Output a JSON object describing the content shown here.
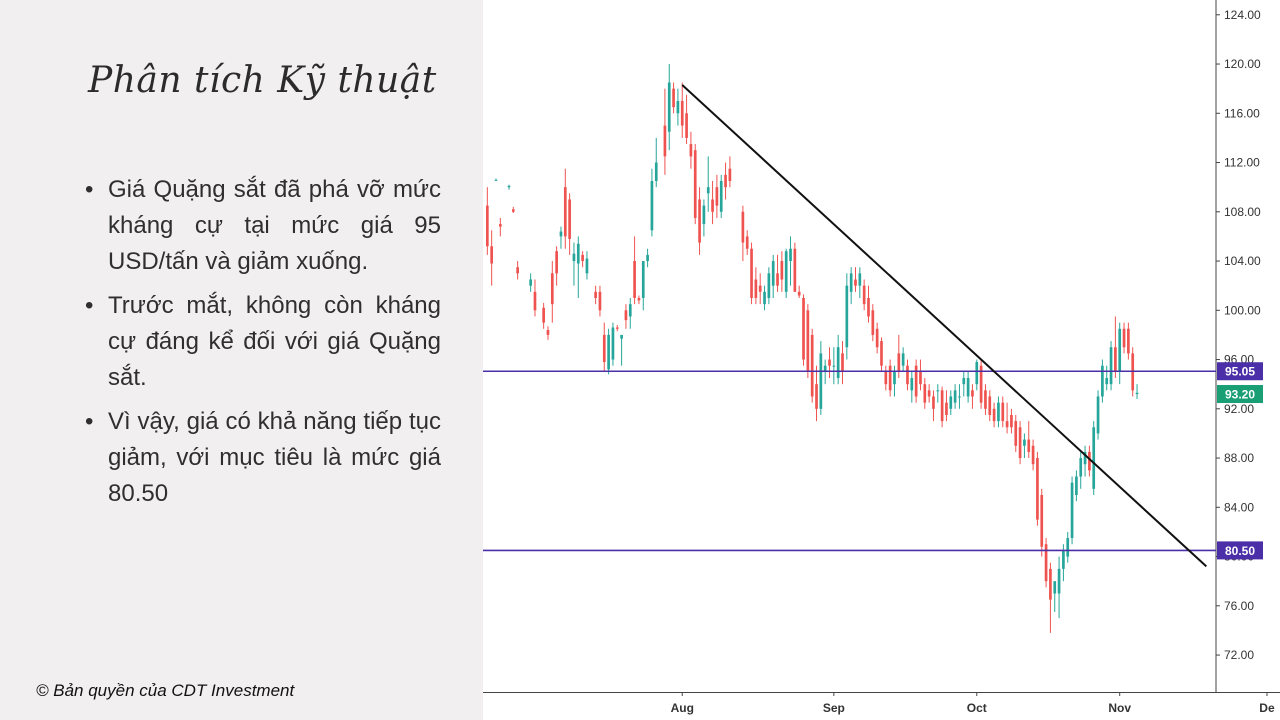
{
  "slide": {
    "title": "Phân tích Kỹ thuật",
    "bullet_symbol": "•",
    "bullets": [
      "Giá Quặng sắt đã phá vỡ mức kháng cự tại mức giá 95 USD/tấn và giảm xuống.",
      "Trước mắt, không còn kháng cự đáng kể đối với giá Quặng sắt.",
      "Vì vậy, giá có khả năng tiếp tục giảm, với mục tiêu là mức giá 80.50"
    ],
    "copyright": "© Bản quyền của CDT Investment"
  },
  "chart_data": {
    "type": "candlestick",
    "title": "",
    "xlabel": "",
    "ylabel": "",
    "x_range": [
      -16,
      153
    ],
    "ylim": [
      69.0,
      125.2
    ],
    "y_ticks": [
      "72.00",
      "76.00",
      "80.00",
      "84.00",
      "88.00",
      "92.00",
      "96.00",
      "100.00",
      "104.00",
      "108.00",
      "112.00",
      "116.00",
      "120.00",
      "124.00"
    ],
    "month_labels": [
      {
        "label": "Aug",
        "x": 30
      },
      {
        "label": "Sep",
        "x": 65
      },
      {
        "label": "Oct",
        "x": 98
      },
      {
        "label": "Nov",
        "x": 131
      },
      {
        "label": "De",
        "x": 165
      }
    ],
    "up_color": "#26a69a",
    "down_color": "#ef5350",
    "horizontal_levels": [
      {
        "value": 95.05,
        "label": "95.05",
        "color": "#4b2fa8"
      },
      {
        "value": 80.5,
        "label": "80.50",
        "color": "#4b2fa8"
      }
    ],
    "last_price": {
      "value": 93.2,
      "label": "93.20",
      "color": "#1a9e74"
    },
    "trendline": {
      "start": {
        "x": 30,
        "y": 118.3
      },
      "end": {
        "x": 151,
        "y": 79.2
      },
      "color": "#111111"
    },
    "candles": [
      {
        "x": -15,
        "o": 108.5,
        "h": 110.0,
        "l": 104.5,
        "c": 105.2
      },
      {
        "x": -14,
        "o": 105.2,
        "h": 106.5,
        "l": 102.0,
        "c": 103.8
      },
      {
        "x": -13,
        "o": 110.6,
        "h": 110.7,
        "l": 110.5,
        "c": 110.6
      },
      {
        "x": -12,
        "o": 107.0,
        "h": 107.5,
        "l": 106.0,
        "c": 106.8
      },
      {
        "x": -10,
        "o": 110.0,
        "h": 110.2,
        "l": 109.8,
        "c": 110.1
      },
      {
        "x": -9,
        "o": 108.2,
        "h": 108.4,
        "l": 107.9,
        "c": 108.0
      },
      {
        "x": -8,
        "o": 103.5,
        "h": 104.0,
        "l": 102.5,
        "c": 103.0
      },
      {
        "x": -5,
        "o": 102.0,
        "h": 103.0,
        "l": 101.5,
        "c": 102.5
      },
      {
        "x": -4,
        "o": 101.5,
        "h": 102.5,
        "l": 99.5,
        "c": 100.0
      },
      {
        "x": -2,
        "o": 100.2,
        "h": 100.6,
        "l": 98.5,
        "c": 99.0
      },
      {
        "x": -1,
        "o": 98.4,
        "h": 98.7,
        "l": 97.6,
        "c": 98.0
      },
      {
        "x": 0,
        "o": 103.0,
        "h": 104.0,
        "l": 99.0,
        "c": 100.5
      },
      {
        "x": 1,
        "o": 104.8,
        "h": 105.2,
        "l": 102.0,
        "c": 103.0
      },
      {
        "x": 2,
        "o": 106.0,
        "h": 106.8,
        "l": 105.0,
        "c": 106.4
      },
      {
        "x": 3,
        "o": 110.0,
        "h": 111.5,
        "l": 105.0,
        "c": 106.0
      },
      {
        "x": 4,
        "o": 109.0,
        "h": 109.5,
        "l": 104.5,
        "c": 105.8
      },
      {
        "x": 5,
        "o": 104.0,
        "h": 105.5,
        "l": 102.0,
        "c": 104.6
      },
      {
        "x": 6,
        "o": 103.8,
        "h": 106.0,
        "l": 101.0,
        "c": 105.4
      },
      {
        "x": 7,
        "o": 104.5,
        "h": 104.8,
        "l": 103.5,
        "c": 104.0
      },
      {
        "x": 8,
        "o": 103.0,
        "h": 104.8,
        "l": 102.5,
        "c": 104.2
      },
      {
        "x": 10,
        "o": 101.5,
        "h": 102.0,
        "l": 100.5,
        "c": 101.0
      },
      {
        "x": 11,
        "o": 101.5,
        "h": 102.0,
        "l": 99.5,
        "c": 100.0
      },
      {
        "x": 12,
        "o": 98.0,
        "h": 99.0,
        "l": 95.0,
        "c": 95.8
      },
      {
        "x": 13,
        "o": 95.2,
        "h": 98.5,
        "l": 94.8,
        "c": 98.0
      },
      {
        "x": 14,
        "o": 96.0,
        "h": 99.0,
        "l": 95.5,
        "c": 98.6
      },
      {
        "x": 15,
        "o": 98.6,
        "h": 98.8,
        "l": 98.3,
        "c": 98.5
      },
      {
        "x": 16,
        "o": 97.7,
        "h": 98.0,
        "l": 95.5,
        "c": 98.0
      },
      {
        "x": 17,
        "o": 100.0,
        "h": 100.5,
        "l": 98.5,
        "c": 99.2
      },
      {
        "x": 18,
        "o": 99.5,
        "h": 101.0,
        "l": 98.5,
        "c": 100.5
      },
      {
        "x": 19,
        "o": 104.0,
        "h": 106.0,
        "l": 100.5,
        "c": 101.0
      },
      {
        "x": 20,
        "o": 101.0,
        "h": 101.2,
        "l": 100.5,
        "c": 100.8
      },
      {
        "x": 21,
        "o": 101.0,
        "h": 104.0,
        "l": 100.0,
        "c": 104.0
      },
      {
        "x": 22,
        "o": 104.0,
        "h": 105.0,
        "l": 103.5,
        "c": 104.5
      },
      {
        "x": 23,
        "o": 106.5,
        "h": 111.5,
        "l": 106.0,
        "c": 110.5
      },
      {
        "x": 24,
        "o": 110.5,
        "h": 114.0,
        "l": 110.0,
        "c": 112.0
      },
      {
        "x": 26,
        "o": 115.0,
        "h": 118.0,
        "l": 111.0,
        "c": 112.5
      },
      {
        "x": 27,
        "o": 114.5,
        "h": 120.0,
        "l": 113.0,
        "c": 118.5
      },
      {
        "x": 28,
        "o": 118.0,
        "h": 118.5,
        "l": 116.0,
        "c": 116.5
      },
      {
        "x": 29,
        "o": 116.0,
        "h": 118.0,
        "l": 115.0,
        "c": 117.0
      },
      {
        "x": 30,
        "o": 117.0,
        "h": 118.5,
        "l": 114.0,
        "c": 115.0
      },
      {
        "x": 31,
        "o": 116.0,
        "h": 117.5,
        "l": 113.5,
        "c": 114.0
      },
      {
        "x": 32,
        "o": 113.5,
        "h": 114.5,
        "l": 111.5,
        "c": 112.5
      },
      {
        "x": 33,
        "o": 113.0,
        "h": 113.5,
        "l": 107.0,
        "c": 107.5
      },
      {
        "x": 34,
        "o": 109.0,
        "h": 110.0,
        "l": 104.5,
        "c": 105.5
      },
      {
        "x": 35,
        "o": 107.0,
        "h": 109.0,
        "l": 106.0,
        "c": 108.5
      },
      {
        "x": 36,
        "o": 109.5,
        "h": 112.5,
        "l": 108.0,
        "c": 110.0
      },
      {
        "x": 37,
        "o": 109.0,
        "h": 110.5,
        "l": 107.0,
        "c": 108.0
      },
      {
        "x": 38,
        "o": 110.0,
        "h": 111.0,
        "l": 107.5,
        "c": 108.5
      },
      {
        "x": 39,
        "o": 108.0,
        "h": 111.0,
        "l": 107.5,
        "c": 110.5
      },
      {
        "x": 40,
        "o": 111.0,
        "h": 112.0,
        "l": 109.0,
        "c": 110.0
      },
      {
        "x": 41,
        "o": 111.5,
        "h": 112.5,
        "l": 110.0,
        "c": 110.5
      },
      {
        "x": 44,
        "o": 108.0,
        "h": 108.5,
        "l": 104.0,
        "c": 105.5
      },
      {
        "x": 45,
        "o": 106.0,
        "h": 106.5,
        "l": 104.5,
        "c": 105.0
      },
      {
        "x": 46,
        "o": 105.0,
        "h": 105.5,
        "l": 100.5,
        "c": 101.0
      },
      {
        "x": 47,
        "o": 102.5,
        "h": 103.5,
        "l": 100.5,
        "c": 101.0
      },
      {
        "x": 48,
        "o": 102.0,
        "h": 103.0,
        "l": 100.5,
        "c": 101.5
      },
      {
        "x": 49,
        "o": 100.5,
        "h": 102.0,
        "l": 100.0,
        "c": 101.5
      },
      {
        "x": 50,
        "o": 101.0,
        "h": 103.5,
        "l": 100.5,
        "c": 103.0
      },
      {
        "x": 51,
        "o": 102.0,
        "h": 104.5,
        "l": 101.0,
        "c": 104.0
      },
      {
        "x": 52,
        "o": 103.0,
        "h": 104.5,
        "l": 101.5,
        "c": 102.0
      },
      {
        "x": 53,
        "o": 104.0,
        "h": 104.8,
        "l": 101.5,
        "c": 102.5
      },
      {
        "x": 54,
        "o": 101.5,
        "h": 105.0,
        "l": 101.0,
        "c": 104.8
      },
      {
        "x": 55,
        "o": 104.0,
        "h": 106.0,
        "l": 102.0,
        "c": 105.0
      },
      {
        "x": 56,
        "o": 105.0,
        "h": 105.5,
        "l": 101.5,
        "c": 101.5
      },
      {
        "x": 57,
        "o": 101.5,
        "h": 102.0,
        "l": 101.0,
        "c": 101.2
      },
      {
        "x": 58,
        "o": 101.0,
        "h": 101.3,
        "l": 95.5,
        "c": 96.0
      },
      {
        "x": 59,
        "o": 100.0,
        "h": 100.5,
        "l": 94.5,
        "c": 95.0
      },
      {
        "x": 60,
        "o": 98.0,
        "h": 98.5,
        "l": 92.5,
        "c": 93.0
      },
      {
        "x": 61,
        "o": 94.0,
        "h": 95.5,
        "l": 91.0,
        "c": 92.0
      },
      {
        "x": 62,
        "o": 92.0,
        "h": 97.5,
        "l": 91.5,
        "c": 96.5
      },
      {
        "x": 63,
        "o": 95.0,
        "h": 96.0,
        "l": 94.0,
        "c": 95.5
      },
      {
        "x": 64,
        "o": 96.0,
        "h": 97.0,
        "l": 94.5,
        "c": 95.5
      },
      {
        "x": 65,
        "o": 95.5,
        "h": 97.0,
        "l": 94.0,
        "c": 95.5
      },
      {
        "x": 66,
        "o": 94.5,
        "h": 98.0,
        "l": 94.0,
        "c": 97.0
      },
      {
        "x": 67,
        "o": 96.5,
        "h": 97.5,
        "l": 94.0,
        "c": 95.0
      },
      {
        "x": 68,
        "o": 97.0,
        "h": 103.0,
        "l": 96.0,
        "c": 102.0
      },
      {
        "x": 69,
        "o": 101.5,
        "h": 103.5,
        "l": 100.5,
        "c": 103.0
      },
      {
        "x": 70,
        "o": 102.5,
        "h": 103.5,
        "l": 101.5,
        "c": 102.0
      },
      {
        "x": 71,
        "o": 102.0,
        "h": 103.5,
        "l": 101.0,
        "c": 103.0
      },
      {
        "x": 72,
        "o": 102.0,
        "h": 102.5,
        "l": 100.0,
        "c": 100.5
      },
      {
        "x": 73,
        "o": 101.0,
        "h": 102.0,
        "l": 99.0,
        "c": 99.5
      },
      {
        "x": 74,
        "o": 100.0,
        "h": 100.5,
        "l": 97.5,
        "c": 98.0
      },
      {
        "x": 75,
        "o": 98.5,
        "h": 99.0,
        "l": 96.5,
        "c": 97.0
      },
      {
        "x": 76,
        "o": 97.5,
        "h": 97.8,
        "l": 95.0,
        "c": 95.5
      },
      {
        "x": 77,
        "o": 95.0,
        "h": 95.5,
        "l": 93.5,
        "c": 94.0
      },
      {
        "x": 78,
        "o": 95.5,
        "h": 96.0,
        "l": 93.0,
        "c": 93.5
      },
      {
        "x": 79,
        "o": 94.0,
        "h": 95.5,
        "l": 93.0,
        "c": 95.0
      },
      {
        "x": 80,
        "o": 96.5,
        "h": 98.0,
        "l": 94.5,
        "c": 95.0
      },
      {
        "x": 81,
        "o": 95.5,
        "h": 97.0,
        "l": 95.0,
        "c": 96.5
      },
      {
        "x": 82,
        "o": 95.5,
        "h": 96.0,
        "l": 93.5,
        "c": 94.0
      },
      {
        "x": 83,
        "o": 93.5,
        "h": 95.0,
        "l": 92.5,
        "c": 94.5
      },
      {
        "x": 84,
        "o": 95.5,
        "h": 96.0,
        "l": 92.5,
        "c": 93.0
      },
      {
        "x": 85,
        "o": 95.0,
        "h": 96.0,
        "l": 93.5,
        "c": 94.0
      },
      {
        "x": 86,
        "o": 94.0,
        "h": 94.5,
        "l": 92.0,
        "c": 92.5
      },
      {
        "x": 87,
        "o": 93.5,
        "h": 94.0,
        "l": 92.5,
        "c": 93.0
      },
      {
        "x": 88,
        "o": 93.0,
        "h": 93.5,
        "l": 91.0,
        "c": 92.0
      },
      {
        "x": 89,
        "o": 93.5,
        "h": 94.0,
        "l": 92.5,
        "c": 93.5
      },
      {
        "x": 90,
        "o": 93.5,
        "h": 93.8,
        "l": 90.5,
        "c": 91.0
      },
      {
        "x": 91,
        "o": 92.5,
        "h": 93.5,
        "l": 91.0,
        "c": 91.5
      },
      {
        "x": 92,
        "o": 92.0,
        "h": 93.5,
        "l": 91.5,
        "c": 93.0
      },
      {
        "x": 93,
        "o": 92.5,
        "h": 94.0,
        "l": 92.0,
        "c": 93.5
      },
      {
        "x": 94,
        "o": 93.0,
        "h": 94.0,
        "l": 92.0,
        "c": 93.0
      },
      {
        "x": 95,
        "o": 94.0,
        "h": 95.0,
        "l": 93.0,
        "c": 94.5
      },
      {
        "x": 96,
        "o": 93.0,
        "h": 95.0,
        "l": 92.5,
        "c": 94.5
      },
      {
        "x": 97,
        "o": 93.5,
        "h": 94.0,
        "l": 92.0,
        "c": 93.0
      },
      {
        "x": 98,
        "o": 94.0,
        "h": 96.0,
        "l": 93.5,
        "c": 95.8
      },
      {
        "x": 99,
        "o": 95.5,
        "h": 96.0,
        "l": 92.0,
        "c": 92.5
      },
      {
        "x": 100,
        "o": 93.5,
        "h": 94.0,
        "l": 91.5,
        "c": 92.0
      },
      {
        "x": 101,
        "o": 93.0,
        "h": 93.5,
        "l": 91.0,
        "c": 91.5
      },
      {
        "x": 102,
        "o": 92.0,
        "h": 92.5,
        "l": 90.5,
        "c": 91.0
      },
      {
        "x": 103,
        "o": 91.0,
        "h": 93.0,
        "l": 90.5,
        "c": 92.5
      },
      {
        "x": 104,
        "o": 92.5,
        "h": 93.0,
        "l": 90.5,
        "c": 91.0
      },
      {
        "x": 105,
        "o": 91.0,
        "h": 92.5,
        "l": 90.0,
        "c": 90.5
      },
      {
        "x": 106,
        "o": 91.5,
        "h": 92.0,
        "l": 90.0,
        "c": 90.5
      },
      {
        "x": 107,
        "o": 91.0,
        "h": 91.5,
        "l": 88.5,
        "c": 89.0
      },
      {
        "x": 108,
        "o": 90.5,
        "h": 91.0,
        "l": 87.5,
        "c": 88.0
      },
      {
        "x": 109,
        "o": 89.0,
        "h": 90.0,
        "l": 88.0,
        "c": 89.5
      },
      {
        "x": 110,
        "o": 89.5,
        "h": 91.0,
        "l": 88.0,
        "c": 88.5
      },
      {
        "x": 111,
        "o": 89.0,
        "h": 89.5,
        "l": 87.0,
        "c": 87.5
      },
      {
        "x": 112,
        "o": 88.0,
        "h": 88.5,
        "l": 82.5,
        "c": 83.0
      },
      {
        "x": 113,
        "o": 85.0,
        "h": 85.5,
        "l": 80.0,
        "c": 80.8
      },
      {
        "x": 114,
        "o": 81.0,
        "h": 81.5,
        "l": 77.5,
        "c": 78.0
      },
      {
        "x": 115,
        "o": 79.0,
        "h": 79.5,
        "l": 73.8,
        "c": 76.5
      },
      {
        "x": 116,
        "o": 77.0,
        "h": 78.0,
        "l": 75.5,
        "c": 78.0
      },
      {
        "x": 117,
        "o": 77.0,
        "h": 80.0,
        "l": 75.0,
        "c": 79.0
      },
      {
        "x": 118,
        "o": 79.0,
        "h": 81.0,
        "l": 78.0,
        "c": 80.5
      },
      {
        "x": 119,
        "o": 80.0,
        "h": 82.0,
        "l": 79.5,
        "c": 81.5
      },
      {
        "x": 120,
        "o": 81.5,
        "h": 86.5,
        "l": 81.0,
        "c": 86.0
      },
      {
        "x": 121,
        "o": 85.0,
        "h": 87.0,
        "l": 84.5,
        "c": 86.5
      },
      {
        "x": 122,
        "o": 86.5,
        "h": 88.5,
        "l": 85.5,
        "c": 88.0
      },
      {
        "x": 123,
        "o": 87.5,
        "h": 89.0,
        "l": 86.5,
        "c": 88.5
      },
      {
        "x": 124,
        "o": 88.5,
        "h": 89.0,
        "l": 86.5,
        "c": 87.0
      },
      {
        "x": 125,
        "o": 85.5,
        "h": 91.0,
        "l": 85.0,
        "c": 90.5
      },
      {
        "x": 126,
        "o": 90.0,
        "h": 93.5,
        "l": 89.5,
        "c": 93.0
      },
      {
        "x": 127,
        "o": 93.0,
        "h": 96.0,
        "l": 92.5,
        "c": 95.5
      },
      {
        "x": 128,
        "o": 94.0,
        "h": 95.5,
        "l": 93.5,
        "c": 94.5
      },
      {
        "x": 129,
        "o": 94.0,
        "h": 97.5,
        "l": 93.5,
        "c": 97.0
      },
      {
        "x": 130,
        "o": 97.0,
        "h": 99.5,
        "l": 94.5,
        "c": 95.0
      },
      {
        "x": 131,
        "o": 95.0,
        "h": 99.0,
        "l": 94.0,
        "c": 98.5
      },
      {
        "x": 132,
        "o": 98.5,
        "h": 99.0,
        "l": 96.5,
        "c": 97.0
      },
      {
        "x": 133,
        "o": 98.5,
        "h": 99.0,
        "l": 96.0,
        "c": 96.5
      },
      {
        "x": 134,
        "o": 96.5,
        "h": 97.0,
        "l": 93.0,
        "c": 93.5
      },
      {
        "x": 135,
        "o": 93.2,
        "h": 94.0,
        "l": 92.8,
        "c": 93.3
      }
    ]
  }
}
